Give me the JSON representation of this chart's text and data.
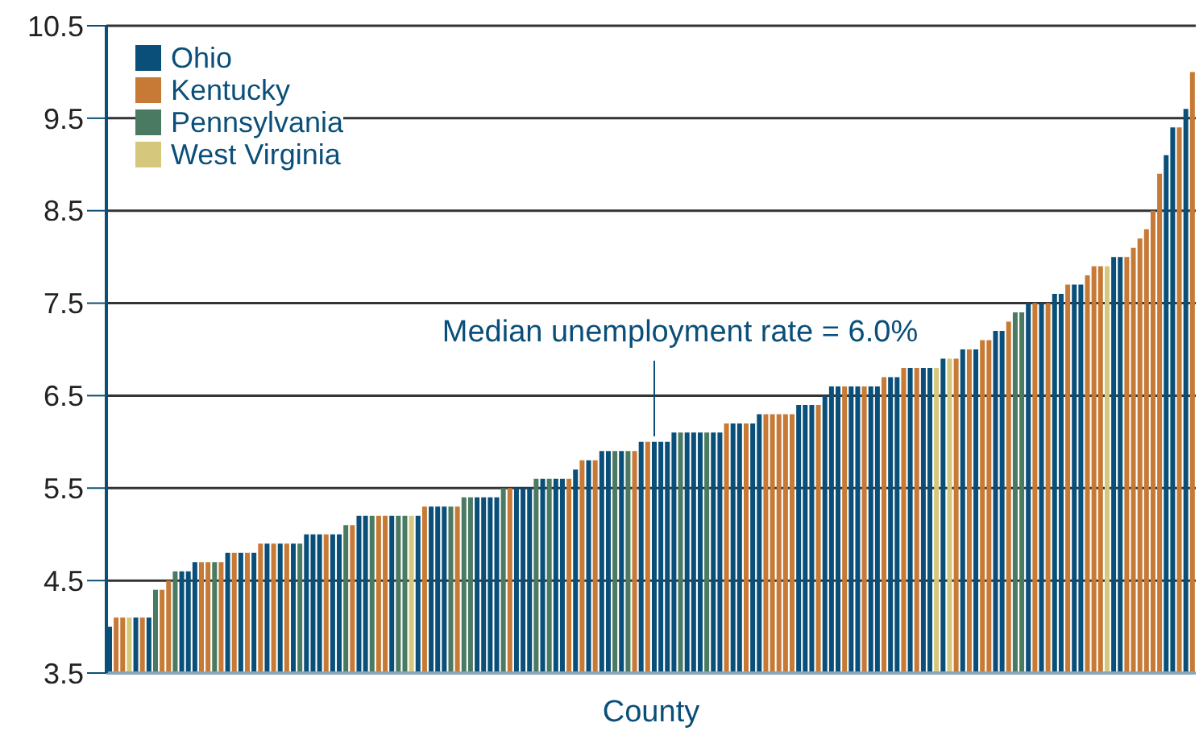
{
  "chart_data": {
    "type": "bar",
    "xlabel": "County",
    "stacked": true,
    "grid": "y",
    "legend": "top left",
    "annotations": [
      "Median unemployment rate = 6.0%"
    ],
    "ylim": [
      3.5,
      10.5
    ],
    "yticks": [
      3.5,
      4.5,
      5.5,
      6.5,
      7.5,
      8.5,
      9.5,
      10.5
    ],
    "categories": [
      null,
      null,
      null,
      null,
      null,
      null,
      null,
      null,
      null,
      null,
      null,
      null,
      null,
      null,
      null,
      null,
      null,
      null,
      null,
      null,
      null,
      null,
      null,
      null,
      null,
      null,
      null,
      null,
      null,
      null,
      null,
      null,
      null,
      null,
      null,
      null,
      null,
      null,
      null,
      null,
      null,
      null,
      null,
      null,
      null,
      null,
      null,
      null,
      null,
      null,
      null,
      null,
      null,
      null,
      null,
      null,
      null,
      null,
      null,
      null,
      null,
      null,
      null,
      null,
      null,
      null,
      null,
      null,
      null,
      null,
      null,
      null,
      null,
      null,
      null,
      null,
      null,
      null,
      null,
      null,
      null,
      null,
      null,
      null,
      null,
      null,
      null,
      null,
      null,
      null,
      null,
      null,
      null,
      null,
      null,
      null,
      null,
      null,
      null,
      null,
      null,
      null,
      null,
      null,
      null,
      null,
      null,
      null,
      null,
      null,
      null,
      null,
      null,
      null,
      null,
      null,
      null,
      null,
      null,
      null,
      null,
      null,
      null,
      null,
      null,
      null,
      null,
      null,
      null,
      null,
      null,
      null,
      null,
      null,
      null,
      null,
      null,
      null,
      null,
      null,
      null,
      null,
      null,
      null,
      null,
      null,
      null,
      null,
      null,
      null,
      null,
      null,
      null,
      null,
      null,
      null,
      null,
      null,
      null,
      null,
      null,
      null,
      null,
      null,
      null,
      null
    ],
    "series": [
      {
        "name": "Ohio",
        "color": "#0a4f79",
        "values": [
          4.0,
          null,
          null,
          null,
          4.1,
          null,
          4.1,
          null,
          null,
          null,
          null,
          4.6,
          4.6,
          4.7,
          null,
          null,
          null,
          null,
          4.8,
          null,
          4.8,
          null,
          4.8,
          null,
          4.9,
          null,
          4.9,
          null,
          4.9,
          null,
          5.0,
          5.0,
          5.0,
          null,
          5.0,
          5.0,
          null,
          null,
          5.2,
          5.2,
          null,
          null,
          null,
          5.2,
          null,
          null,
          null,
          5.2,
          null,
          5.3,
          5.3,
          5.3,
          null,
          null,
          null,
          null,
          5.4,
          5.4,
          5.4,
          5.4,
          null,
          null,
          5.5,
          5.5,
          5.5,
          null,
          5.6,
          null,
          5.6,
          5.6,
          null,
          5.7,
          null,
          5.8,
          null,
          5.9,
          5.9,
          null,
          5.9,
          null,
          null,
          6.0,
          null,
          6.0,
          6.0,
          6.0,
          6.1,
          null,
          6.1,
          6.1,
          6.1,
          null,
          6.1,
          6.1,
          null,
          6.2,
          6.2,
          null,
          6.2,
          6.3,
          null,
          null,
          null,
          null,
          null,
          6.4,
          6.4,
          6.4,
          null,
          6.5,
          6.6,
          6.6,
          null,
          6.6,
          6.6,
          null,
          6.6,
          6.6,
          null,
          6.7,
          6.7,
          null,
          6.8,
          null,
          6.8,
          6.8,
          null,
          6.9,
          null,
          null,
          7.0,
          null,
          7.0,
          null,
          null,
          7.2,
          7.2,
          null,
          null,
          null,
          7.5,
          null,
          7.5,
          null,
          7.6,
          7.6,
          null,
          7.7,
          7.7,
          null,
          null,
          null,
          null,
          8.0,
          8.0,
          null,
          null,
          null,
          null,
          null,
          null,
          9.1,
          9.4,
          null,
          9.6,
          null
        ]
      },
      {
        "name": "Kentucky",
        "color": "#c77a36",
        "values": [
          null,
          4.1,
          4.1,
          null,
          null,
          4.1,
          null,
          null,
          4.4,
          4.5,
          null,
          null,
          null,
          null,
          4.7,
          4.7,
          null,
          4.7,
          null,
          4.8,
          null,
          4.8,
          null,
          4.9,
          null,
          4.9,
          null,
          4.9,
          null,
          null,
          null,
          null,
          null,
          5.0,
          null,
          null,
          null,
          5.1,
          null,
          null,
          null,
          5.2,
          5.2,
          null,
          null,
          null,
          null,
          null,
          5.3,
          null,
          null,
          null,
          null,
          5.3,
          null,
          null,
          null,
          null,
          null,
          null,
          null,
          5.5,
          null,
          null,
          null,
          null,
          null,
          null,
          null,
          null,
          5.6,
          null,
          5.8,
          null,
          5.8,
          null,
          null,
          null,
          null,
          null,
          5.9,
          null,
          6.0,
          null,
          null,
          null,
          null,
          null,
          null,
          null,
          null,
          null,
          null,
          null,
          6.2,
          null,
          null,
          6.2,
          null,
          null,
          6.3,
          6.3,
          6.3,
          6.3,
          6.3,
          null,
          null,
          null,
          6.4,
          null,
          null,
          null,
          6.6,
          null,
          null,
          6.6,
          null,
          null,
          6.7,
          null,
          null,
          6.8,
          null,
          6.8,
          null,
          null,
          null,
          null,
          null,
          6.9,
          null,
          7.0,
          null,
          7.1,
          7.1,
          null,
          null,
          7.3,
          null,
          null,
          null,
          7.5,
          null,
          7.5,
          null,
          null,
          7.7,
          null,
          null,
          7.8,
          7.9,
          7.9,
          null,
          null,
          null,
          8.0,
          8.1,
          8.2,
          8.3,
          8.5,
          8.9,
          null,
          null,
          9.4,
          null,
          10.0
        ]
      },
      {
        "name": "Pennsylvania",
        "color": "#4b7a63",
        "values": [
          null,
          null,
          null,
          null,
          null,
          null,
          null,
          4.4,
          null,
          null,
          4.6,
          null,
          null,
          null,
          null,
          null,
          4.7,
          null,
          null,
          null,
          null,
          null,
          null,
          null,
          null,
          null,
          null,
          null,
          null,
          4.9,
          null,
          null,
          null,
          null,
          null,
          null,
          5.1,
          null,
          null,
          null,
          5.2,
          null,
          null,
          null,
          5.2,
          5.2,
          null,
          null,
          null,
          null,
          null,
          null,
          5.3,
          null,
          5.4,
          5.4,
          null,
          null,
          null,
          null,
          5.5,
          null,
          null,
          null,
          null,
          5.6,
          null,
          5.6,
          null,
          null,
          null,
          null,
          null,
          null,
          null,
          null,
          null,
          5.9,
          null,
          5.9,
          null,
          null,
          null,
          null,
          null,
          null,
          null,
          6.1,
          null,
          null,
          null,
          6.1,
          null,
          null,
          null,
          null,
          null,
          null,
          null,
          null,
          null,
          null,
          null,
          null,
          null,
          null,
          null,
          null,
          null,
          null,
          null,
          null,
          null,
          null,
          null,
          null,
          null,
          null,
          null,
          null,
          null,
          null,
          null,
          null,
          null,
          null,
          null,
          null,
          null,
          null,
          null,
          null,
          null,
          null,
          null,
          null,
          null,
          null,
          7.4,
          7.4,
          null,
          null,
          null,
          null,
          null,
          null,
          null,
          null,
          null,
          null,
          null,
          null,
          null,
          null,
          null,
          null,
          null,
          null,
          null,
          null,
          null,
          null,
          null,
          null,
          null,
          null
        ]
      },
      {
        "name": "West Virginia",
        "color": "#d5c77c",
        "values": [
          null,
          null,
          null,
          4.1,
          null,
          null,
          null,
          null,
          null,
          null,
          null,
          null,
          null,
          null,
          null,
          null,
          null,
          null,
          null,
          null,
          null,
          null,
          null,
          null,
          null,
          null,
          null,
          null,
          null,
          null,
          null,
          null,
          null,
          null,
          null,
          null,
          null,
          null,
          null,
          null,
          null,
          null,
          null,
          null,
          null,
          null,
          5.2,
          null,
          null,
          null,
          null,
          null,
          null,
          null,
          null,
          null,
          null,
          null,
          null,
          null,
          null,
          null,
          null,
          null,
          null,
          null,
          null,
          null,
          null,
          null,
          null,
          null,
          null,
          null,
          null,
          null,
          null,
          null,
          null,
          null,
          null,
          null,
          null,
          null,
          null,
          null,
          null,
          null,
          null,
          null,
          null,
          null,
          null,
          null,
          null,
          null,
          null,
          null,
          null,
          null,
          null,
          null,
          null,
          null,
          null,
          null,
          null,
          null,
          null,
          null,
          null,
          null,
          null,
          null,
          null,
          null,
          null,
          null,
          null,
          null,
          null,
          null,
          null,
          null,
          null,
          null,
          6.8,
          null,
          6.9,
          null,
          null,
          null,
          null,
          null,
          null,
          null,
          null,
          null,
          null,
          null,
          null,
          null,
          null,
          null,
          null,
          null,
          null,
          null,
          null,
          null,
          null,
          null,
          7.9,
          null,
          null,
          null,
          null,
          null,
          null,
          null,
          null,
          null,
          null,
          null,
          null,
          null
        ]
      }
    ]
  }
}
